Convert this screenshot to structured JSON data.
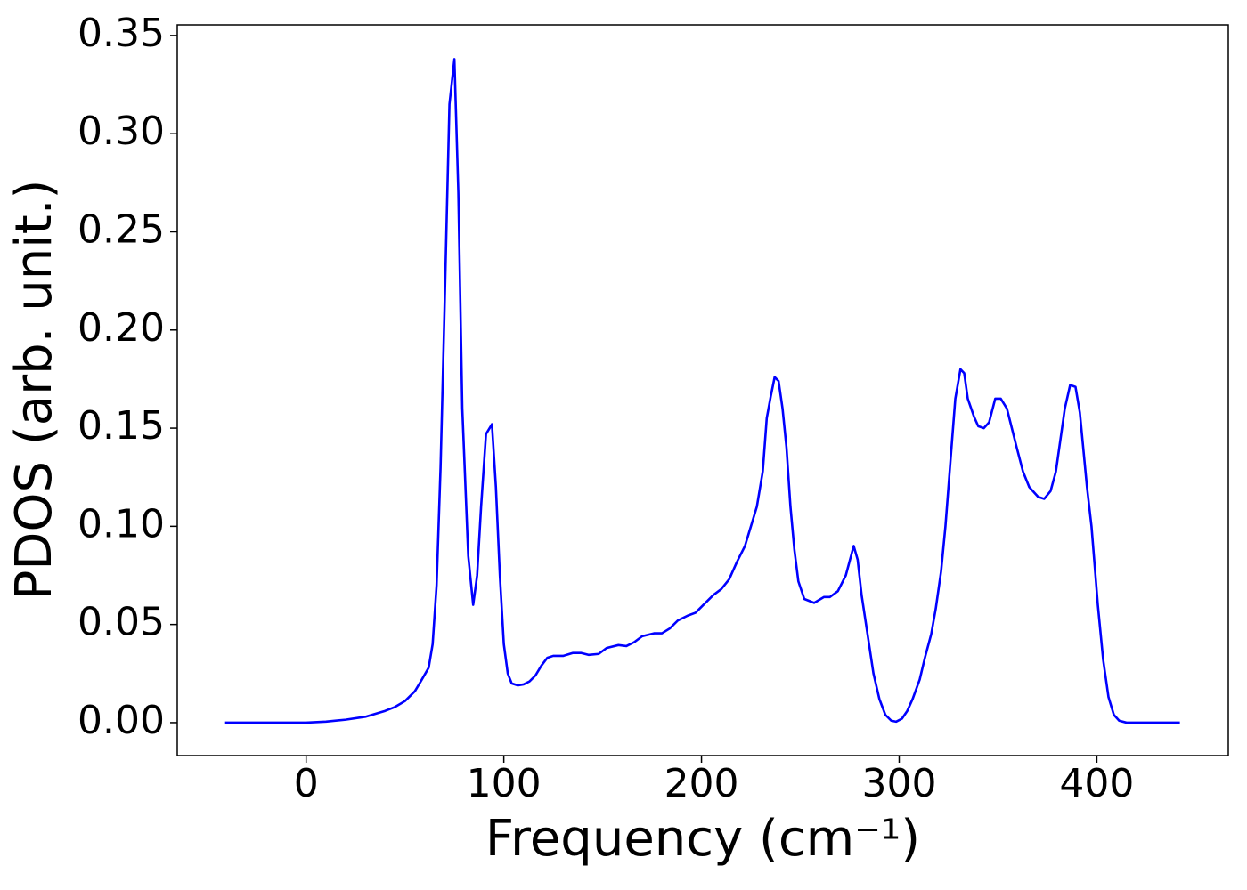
{
  "chart_data": {
    "type": "line",
    "xlabel": "Frequency (cm⁻¹)",
    "ylabel": "PDOS (arb. unit.)",
    "x": [
      -41,
      0,
      10,
      20,
      30,
      40,
      45,
      50,
      55,
      58,
      62,
      64,
      66,
      68,
      70,
      72.5,
      75,
      77,
      79,
      82,
      84.5,
      86.5,
      88.5,
      91,
      94,
      96,
      98,
      100,
      102,
      104,
      107,
      110,
      113,
      116,
      119,
      122,
      125,
      130,
      135,
      139,
      143,
      148,
      152,
      158,
      162,
      166,
      170,
      176,
      180,
      184,
      188,
      193,
      197,
      201,
      206,
      210,
      214,
      218,
      222,
      225,
      228,
      231,
      233,
      235,
      237,
      239,
      241,
      243,
      245,
      247,
      249,
      252,
      257,
      262,
      265,
      269,
      273,
      277,
      279,
      281,
      284,
      287,
      290,
      293,
      296,
      298.5,
      301.4,
      304.1,
      306.8,
      310.4,
      313,
      316.2,
      318.5,
      321.2,
      323.4,
      325.7,
      328.4,
      331,
      332.9,
      334.7,
      337.8,
      340,
      342.8,
      345.5,
      348.6,
      351.4,
      354.5,
      359.5,
      362.6,
      365.8,
      370.3,
      373.4,
      376.6,
      379.3,
      383.8,
      386.5,
      389.2,
      391.4,
      395,
      397.3,
      400.5,
      403.2,
      405.9,
      408.6,
      411.3,
      415,
      442
    ],
    "series": [
      {
        "name": "PDOS",
        "color": "#0000ff",
        "values": [
          0,
          0,
          0.0005,
          0.0015,
          0.003,
          0.006,
          0.008,
          0.011,
          0.016,
          0.021,
          0.028,
          0.04,
          0.07,
          0.13,
          0.21,
          0.315,
          0.338,
          0.27,
          0.16,
          0.085,
          0.06,
          0.075,
          0.11,
          0.147,
          0.152,
          0.12,
          0.075,
          0.04,
          0.025,
          0.02,
          0.019,
          0.0195,
          0.021,
          0.024,
          0.029,
          0.033,
          0.034,
          0.034,
          0.0355,
          0.0355,
          0.0345,
          0.035,
          0.038,
          0.0395,
          0.039,
          0.041,
          0.044,
          0.0455,
          0.0455,
          0.048,
          0.052,
          0.0545,
          0.056,
          0.06,
          0.065,
          0.068,
          0.073,
          0.082,
          0.09,
          0.1,
          0.11,
          0.128,
          0.155,
          0.166,
          0.176,
          0.174,
          0.16,
          0.14,
          0.11,
          0.088,
          0.072,
          0.063,
          0.061,
          0.064,
          0.064,
          0.067,
          0.075,
          0.09,
          0.083,
          0.065,
          0.045,
          0.025,
          0.012,
          0.004,
          0.001,
          0.0005,
          0.002,
          0.006,
          0.012,
          0.022,
          0.033,
          0.045,
          0.058,
          0.077,
          0.1,
          0.13,
          0.165,
          0.18,
          0.178,
          0.165,
          0.156,
          0.151,
          0.15,
          0.153,
          0.165,
          0.165,
          0.16,
          0.14,
          0.128,
          0.12,
          0.115,
          0.114,
          0.118,
          0.128,
          0.16,
          0.172,
          0.171,
          0.158,
          0.12,
          0.1,
          0.06,
          0.032,
          0.013,
          0.004,
          0.001,
          0,
          0
        ]
      }
    ],
    "xlim": [
      -65.2,
      466.5
    ],
    "ylim": [
      -0.0168,
      0.3554
    ],
    "xticks": [
      0,
      100,
      200,
      300,
      400
    ],
    "yticks": [
      {
        "value": 0,
        "label": "0.00"
      },
      {
        "value": 0.05,
        "label": "0.05"
      },
      {
        "value": 0.1,
        "label": "0.10"
      },
      {
        "value": 0.15,
        "label": "0.15"
      },
      {
        "value": 0.2,
        "label": "0.20"
      },
      {
        "value": 0.25,
        "label": "0.25"
      },
      {
        "value": 0.3,
        "label": "0.30"
      },
      {
        "value": 0.35,
        "label": "0.35"
      }
    ],
    "grid": false
  }
}
